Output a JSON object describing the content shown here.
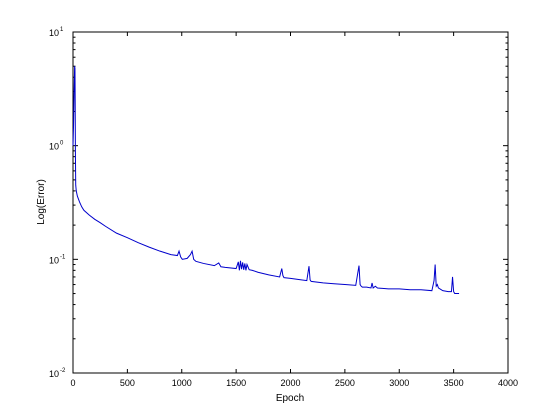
{
  "chart_data": {
    "type": "line",
    "title": "",
    "xlabel": "Epoch",
    "ylabel": "Log(Error)",
    "xlim": [
      0,
      4000
    ],
    "ylim": [
      0.01,
      10
    ],
    "yscale": "log",
    "grid": false,
    "legend": "none",
    "line_color": "#0000cc",
    "x_ticks": [
      {
        "value": 0,
        "label": "0"
      },
      {
        "value": 500,
        "label": "500"
      },
      {
        "value": 1000,
        "label": "1000"
      },
      {
        "value": 1500,
        "label": "1500"
      },
      {
        "value": 2000,
        "label": "2000"
      },
      {
        "value": 2500,
        "label": "2500"
      },
      {
        "value": 3000,
        "label": "3000"
      },
      {
        "value": 3500,
        "label": "3500"
      },
      {
        "value": 4000,
        "label": "4000"
      }
    ],
    "y_ticks": [
      {
        "value": 0.01,
        "base": "10",
        "exp": "-2"
      },
      {
        "value": 0.1,
        "base": "10",
        "exp": "-1"
      },
      {
        "value": 1,
        "base": "10",
        "exp": "0"
      },
      {
        "value": 10,
        "base": "10",
        "exp": "1"
      }
    ],
    "series": [
      {
        "x": [
          0,
          5,
          10,
          15,
          18,
          20,
          22,
          25,
          30,
          40,
          60,
          80,
          100,
          150,
          200,
          250,
          300,
          400,
          500,
          600,
          700,
          800,
          900,
          960,
          975,
          990,
          1005,
          1050,
          1080,
          1095,
          1110,
          1130,
          1200,
          1300,
          1340,
          1360,
          1400,
          1500,
          1520,
          1530,
          1540,
          1550,
          1560,
          1570,
          1580,
          1590,
          1600,
          1620,
          1650,
          1700,
          1800,
          1900,
          1920,
          1930,
          1940,
          2000,
          2100,
          2150,
          2170,
          2180,
          2190,
          2300,
          2400,
          2500,
          2600,
          2630,
          2640,
          2650,
          2660,
          2700,
          2740,
          2750,
          2760,
          2780,
          2800,
          2900,
          3000,
          3100,
          3200,
          3300,
          3320,
          3330,
          3340,
          3350,
          3360,
          3400,
          3450,
          3480,
          3490,
          3500,
          3510,
          3520,
          3550
        ],
        "y": [
          1.0,
          1.5,
          3.0,
          5.0,
          4.8,
          2.5,
          0.9,
          0.45,
          0.4,
          0.36,
          0.32,
          0.29,
          0.27,
          0.245,
          0.225,
          0.21,
          0.195,
          0.17,
          0.155,
          0.14,
          0.128,
          0.118,
          0.11,
          0.108,
          0.118,
          0.105,
          0.1,
          0.102,
          0.11,
          0.118,
          0.1,
          0.096,
          0.092,
          0.088,
          0.093,
          0.086,
          0.085,
          0.083,
          0.095,
          0.08,
          0.097,
          0.082,
          0.094,
          0.081,
          0.092,
          0.08,
          0.09,
          0.081,
          0.08,
          0.077,
          0.073,
          0.07,
          0.083,
          0.072,
          0.069,
          0.068,
          0.066,
          0.065,
          0.087,
          0.066,
          0.064,
          0.062,
          0.061,
          0.06,
          0.059,
          0.088,
          0.06,
          0.058,
          0.057,
          0.057,
          0.056,
          0.062,
          0.056,
          0.058,
          0.056,
          0.055,
          0.055,
          0.054,
          0.054,
          0.053,
          0.065,
          0.09,
          0.058,
          0.06,
          0.056,
          0.053,
          0.052,
          0.052,
          0.07,
          0.052,
          0.05,
          0.05,
          0.05
        ]
      }
    ]
  }
}
